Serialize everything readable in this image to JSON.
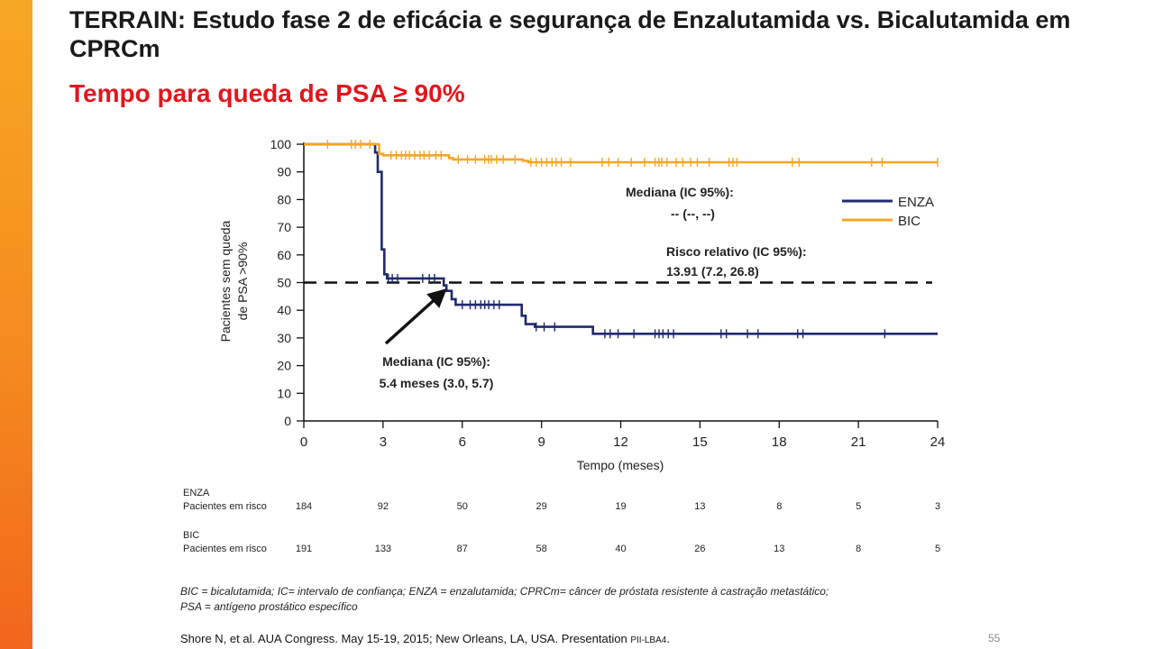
{
  "title_line1": "TERRAIN: Estudo fase 2 de eficácia e segurança de Enzalutamida vs. Bicalutamida em CPRCm",
  "subtitle": "Tempo para queda de PSA ≥ 90%",
  "colors": {
    "enza": "#1f2a6e",
    "bic": "#f5a623",
    "title": "#e3161b",
    "accent_bar": "#f58a1f"
  },
  "chart_data": {
    "type": "line",
    "chart_subtype": "kaplan-meier step",
    "xlabel": "Tempo (meses)",
    "ylabel_line1": "Pacientes sem queda",
    "ylabel_line2": "de PSA >90%",
    "xlim": [
      0,
      24
    ],
    "ylim": [
      0,
      100
    ],
    "x_ticks": [
      "0",
      "3",
      "6",
      "9",
      "12",
      "15",
      "18",
      "21",
      "24"
    ],
    "y_ticks": [
      "0",
      "10",
      "20",
      "30",
      "40",
      "50",
      "60",
      "70",
      "80",
      "90",
      "100"
    ],
    "grid": false,
    "legend_position": "right, upper",
    "series": [
      {
        "name": "ENZA",
        "color": "#1f2a6e",
        "steps": [
          [
            0,
            100
          ],
          [
            2.7,
            100
          ],
          [
            2.7,
            97
          ],
          [
            2.8,
            97
          ],
          [
            2.8,
            90
          ],
          [
            2.95,
            90
          ],
          [
            2.95,
            62
          ],
          [
            3.05,
            62
          ],
          [
            3.05,
            53
          ],
          [
            3.15,
            53
          ],
          [
            3.15,
            51.5
          ],
          [
            5.3,
            51.5
          ],
          [
            5.3,
            49
          ],
          [
            5.4,
            49
          ],
          [
            5.4,
            47
          ],
          [
            5.6,
            47
          ],
          [
            5.6,
            44
          ],
          [
            5.75,
            44
          ],
          [
            5.75,
            42
          ],
          [
            8.25,
            42
          ],
          [
            8.25,
            38
          ],
          [
            8.4,
            38
          ],
          [
            8.4,
            35
          ],
          [
            8.75,
            35
          ],
          [
            8.75,
            34
          ],
          [
            10.95,
            34
          ],
          [
            10.95,
            31.5
          ],
          [
            24,
            31.5
          ]
        ],
        "censor_x": [
          3.2,
          3.35,
          3.55,
          4.5,
          4.75,
          4.95,
          6.0,
          6.3,
          6.5,
          6.7,
          6.85,
          7.0,
          7.2,
          7.4,
          8.8,
          9.1,
          9.5,
          11.4,
          11.6,
          11.9,
          12.5,
          13.3,
          13.45,
          13.6,
          13.8,
          14.0,
          15.8,
          16.0,
          16.8,
          17.2,
          18.7,
          18.9,
          22.0
        ]
      },
      {
        "name": "BIC",
        "color": "#f5a623",
        "steps": [
          [
            0,
            100
          ],
          [
            2.85,
            100
          ],
          [
            2.85,
            96.5
          ],
          [
            3.0,
            96.5
          ],
          [
            3.0,
            96
          ],
          [
            5.5,
            96
          ],
          [
            5.5,
            95
          ],
          [
            5.65,
            95
          ],
          [
            5.65,
            94.5
          ],
          [
            8.3,
            94.5
          ],
          [
            8.3,
            94
          ],
          [
            8.5,
            94
          ],
          [
            8.5,
            93.5
          ],
          [
            24,
            93.5
          ]
        ],
        "censor_x": [
          0.9,
          1.8,
          1.95,
          2.15,
          2.5,
          3.3,
          3.5,
          3.7,
          3.85,
          4.0,
          4.2,
          4.4,
          4.55,
          4.75,
          5.0,
          5.2,
          5.85,
          6.2,
          6.5,
          6.85,
          7.0,
          7.1,
          7.3,
          7.55,
          8.0,
          8.6,
          8.8,
          9.0,
          9.2,
          9.4,
          9.55,
          9.75,
          10.1,
          11.3,
          11.55,
          11.9,
          12.4,
          12.9,
          13.3,
          13.45,
          13.55,
          13.75,
          14.1,
          14.35,
          14.65,
          14.9,
          15.35,
          16.1,
          16.25,
          16.4,
          18.5,
          18.75,
          21.5,
          21.9,
          24
        ]
      }
    ],
    "reference_line_y": 50,
    "legend": [
      "ENZA",
      "BIC"
    ],
    "annotations": {
      "bic_median_label": "Mediana (IC 95%):",
      "bic_median_value": "-- (--, --)",
      "hr_label": "Risco relativo (IC 95%):",
      "hr_value": "13.91 (7.2, 26.8)",
      "enza_median_label": "Mediana (IC 95%):",
      "enza_median_value": "5.4 meses (3.0, 5.7)"
    },
    "risk_table": {
      "enza_group": "ENZA",
      "enza_row_label": "Pacientes em risco",
      "enza_values": [
        "184",
        "92",
        "50",
        "29",
        "19",
        "13",
        "8",
        "5",
        "3"
      ],
      "bic_group": "BIC",
      "bic_row_label": "Pacientes em risco",
      "bic_values": [
        "191",
        "133",
        "87",
        "58",
        "40",
        "26",
        "13",
        "8",
        "5"
      ]
    }
  },
  "footnote_line1": "BIC = bicalutamida; IC= intervalo de confiança; ENZA = enzalutamida; CPRCm= câncer de próstata resistente à castração metastático;",
  "footnote_line2": "PSA = antígeno prostático específico",
  "reference": "Shore N, et al. AUA Congress. May 15-19, 2015; New Orleans, LA, USA. Presentation ",
  "reference_small": "PII-LBA4",
  "reference_end": ".",
  "page_number": "55"
}
